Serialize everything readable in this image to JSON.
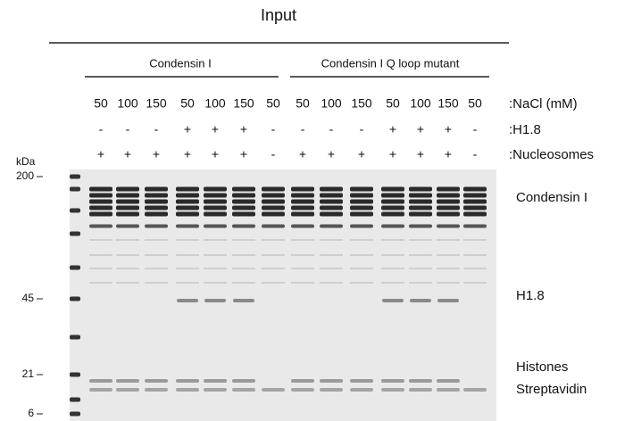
{
  "figure": {
    "title": "Input",
    "groups": [
      "Condensin I",
      "Condensin I Q loop mutant"
    ],
    "row_labels": [
      ":NaCl (mM)",
      ":H1.8",
      ":Nucleosomes"
    ],
    "lanes": {
      "nacl": [
        "50",
        "100",
        "150",
        "50",
        "100",
        "150",
        "50",
        "50",
        "100",
        "150",
        "50",
        "100",
        "150",
        "50"
      ],
      "h18": [
        "-",
        "-",
        "-",
        "+",
        "+",
        "+",
        "-",
        "-",
        "-",
        "-",
        "+",
        "+",
        "+",
        "-"
      ],
      "nucleosomes": [
        "+",
        "+",
        "+",
        "+",
        "+",
        "+",
        "-",
        "+",
        "+",
        "+",
        "+",
        "+",
        "+",
        "-"
      ]
    },
    "marker_unit": "kDa",
    "markers": [
      "200",
      "45",
      "21",
      "6"
    ],
    "band_labels": [
      "Condensin I",
      "H1.8",
      "Histones",
      "Streptavidin"
    ]
  }
}
